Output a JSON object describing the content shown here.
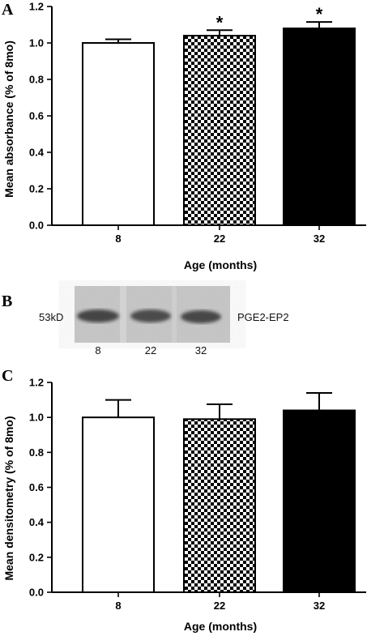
{
  "colors": {
    "bar_white": "#ffffff",
    "bar_black": "#000000",
    "checker_dark": "#000000",
    "checker_light": "#ffffff",
    "blot_bg": "#c9c9c9",
    "blot_band": "#4a4a4a"
  },
  "panels": [
    {
      "letter": "A",
      "ylabel": "Mean absorbance (% of 8mo)",
      "xlabel": "Age (months)",
      "significance_marker": "*"
    },
    {
      "letter": "C",
      "ylabel": "Mean densitometry (% of 8mo)",
      "xlabel": "Age (months)",
      "significance_marker": ""
    }
  ],
  "blot": {
    "letter": "B",
    "mw_label": "53kD",
    "protein_label": "PGE2-EP2",
    "lanes": [
      "8",
      "22",
      "32"
    ]
  },
  "chart_data": [
    {
      "type": "bar",
      "title": "",
      "categories": [
        "8",
        "22",
        "32"
      ],
      "values": [
        1.0,
        1.04,
        1.08
      ],
      "errors": [
        0.02,
        0.03,
        0.035
      ],
      "fills": [
        "white",
        "checkered",
        "black"
      ],
      "significant": [
        false,
        true,
        true
      ],
      "xlabel": "Age (months)",
      "ylabel": "Mean absorbance (% of 8mo)",
      "ylim": [
        0.0,
        1.2
      ],
      "yticks": [
        "0.0",
        "0.2",
        "0.4",
        "0.6",
        "0.8",
        "1.0",
        "1.2"
      ],
      "grid": false
    },
    {
      "type": "bar",
      "title": "",
      "categories": [
        "8",
        "22",
        "32"
      ],
      "values": [
        1.0,
        0.99,
        1.04
      ],
      "errors": [
        0.1,
        0.085,
        0.1
      ],
      "fills": [
        "white",
        "checkered",
        "black"
      ],
      "significant": [
        false,
        false,
        false
      ],
      "xlabel": "Age (months)",
      "ylabel": "Mean densitometry (% of 8mo)",
      "ylim": [
        0.0,
        1.2
      ],
      "yticks": [
        "0.0",
        "0.2",
        "0.4",
        "0.6",
        "0.8",
        "1.0",
        "1.2"
      ],
      "grid": false
    }
  ]
}
